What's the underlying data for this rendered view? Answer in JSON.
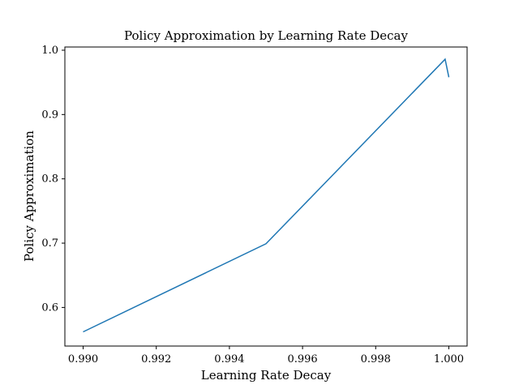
{
  "chart_data": {
    "type": "line",
    "title": "Policy Approximation by Learning Rate Decay",
    "xlabel": "Learning Rate Decay",
    "ylabel": "Policy Approximation",
    "xlim": [
      0.9895,
      1.0005
    ],
    "ylim": [
      0.54,
      1.005
    ],
    "xticks": [
      0.99,
      0.992,
      0.994,
      0.996,
      0.998,
      1.0
    ],
    "xtick_labels": [
      "0.990",
      "0.992",
      "0.994",
      "0.996",
      "0.998",
      "1.000"
    ],
    "yticks": [
      0.6,
      0.7,
      0.8,
      0.9,
      1.0
    ],
    "ytick_labels": [
      "0.6",
      "0.7",
      "0.8",
      "0.9",
      "1.0"
    ],
    "grid": false,
    "series": [
      {
        "color": "#1f77b4",
        "x": [
          0.99,
          0.995,
          0.9999,
          1.0
        ],
        "y": [
          0.562,
          0.699,
          0.986,
          0.958
        ]
      }
    ]
  }
}
